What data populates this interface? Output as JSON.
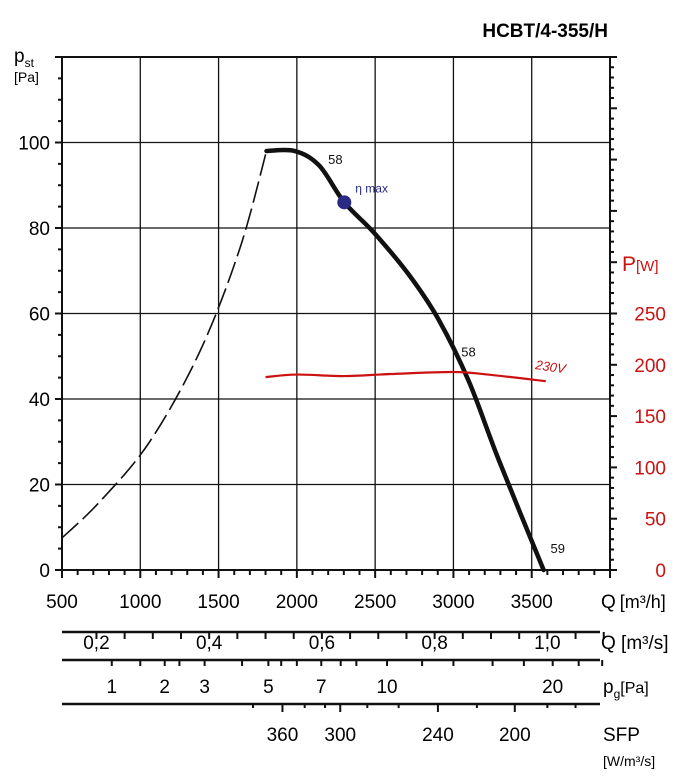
{
  "chart_data": {
    "type": "line",
    "title": "HCBT/4-355/H",
    "ylabel": "p",
    "ylabel_sub": "st",
    "ylabel_unit": "[Pa]",
    "y2label": "P",
    "y2label_unit": "[W]",
    "xlabel": "Q",
    "xlabel_unit": "[m³/h]",
    "xlim": [
      500,
      4000
    ],
    "ylim": [
      0,
      120
    ],
    "y2lim": [
      0,
      500
    ],
    "grid": true,
    "x_ticks": [
      "500",
      "1000",
      "1500",
      "2000",
      "2500",
      "3000",
      "3500"
    ],
    "x_tick_values": [
      500,
      1000,
      1500,
      2000,
      2500,
      3000,
      3500
    ],
    "y_ticks": [
      "0",
      "20",
      "40",
      "60",
      "80",
      "100"
    ],
    "y_tick_values": [
      0,
      20,
      40,
      60,
      80,
      100
    ],
    "y2_ticks": [
      "0",
      "50",
      "100",
      "150",
      "200",
      "250"
    ],
    "y2_tick_values": [
      0,
      50,
      100,
      150,
      200,
      250
    ],
    "series": [
      {
        "name": "pressure (unstable, dashed)",
        "unit": "Pa",
        "x": [
          500,
          742,
          1060,
          1379,
          1634,
          1806
        ],
        "y": [
          7.5,
          16,
          30,
          51,
          75,
          98
        ]
      },
      {
        "name": "pressure",
        "unit": "Pa",
        "x": [
          1806,
          1987,
          2143,
          2303,
          2490,
          2717,
          2908,
          3100,
          3290,
          3576
        ],
        "y": [
          98,
          98,
          94.6,
          86,
          79,
          69,
          58.4,
          44,
          25.7,
          0
        ]
      },
      {
        "name": "power 230V",
        "unit": "W",
        "axis": "right",
        "x": [
          1800,
          2000,
          2300,
          2600,
          3000,
          3250,
          3590
        ],
        "y": [
          188,
          190.5,
          189,
          191,
          193,
          190,
          184
        ]
      }
    ],
    "eta_max": {
      "label": "η max",
      "x": 2303,
      "y": 86
    },
    "annotations": [
      {
        "text": "58",
        "x": 2200,
        "y": 95
      },
      {
        "text": "58",
        "x": 3050,
        "y": 50
      },
      {
        "text": "59",
        "x": 3620,
        "y": 4
      },
      {
        "text": "230V",
        "x": 3520,
        "y": 47
      }
    ],
    "secondary_scales": [
      {
        "name": "Q",
        "unit": "[m³/s]",
        "labels": [
          "0,2",
          "0,4",
          "0,6",
          "0,8",
          "1,0"
        ],
        "at_q": [
          720,
          1440,
          2160,
          2880,
          3600
        ]
      },
      {
        "name": "p",
        "sub": "g",
        "unit": "[Pa]",
        "labels": [
          "1",
          "2",
          "3",
          "5",
          "7",
          "10",
          "20"
        ],
        "at_q": [
          818,
          1156,
          1411,
          1818,
          2156,
          2576,
          3634
        ]
      },
      {
        "name": "SFP",
        "unit": "[W/m³/s]",
        "labels": [
          "360",
          "300",
          "240",
          "200"
        ],
        "at_q": [
          1908,
          2277,
          2901,
          3392
        ]
      }
    ],
    "colors": {
      "curve": "#111111",
      "power": "#cc1111",
      "eta": "#2a2a85",
      "grid": "#111111"
    }
  }
}
